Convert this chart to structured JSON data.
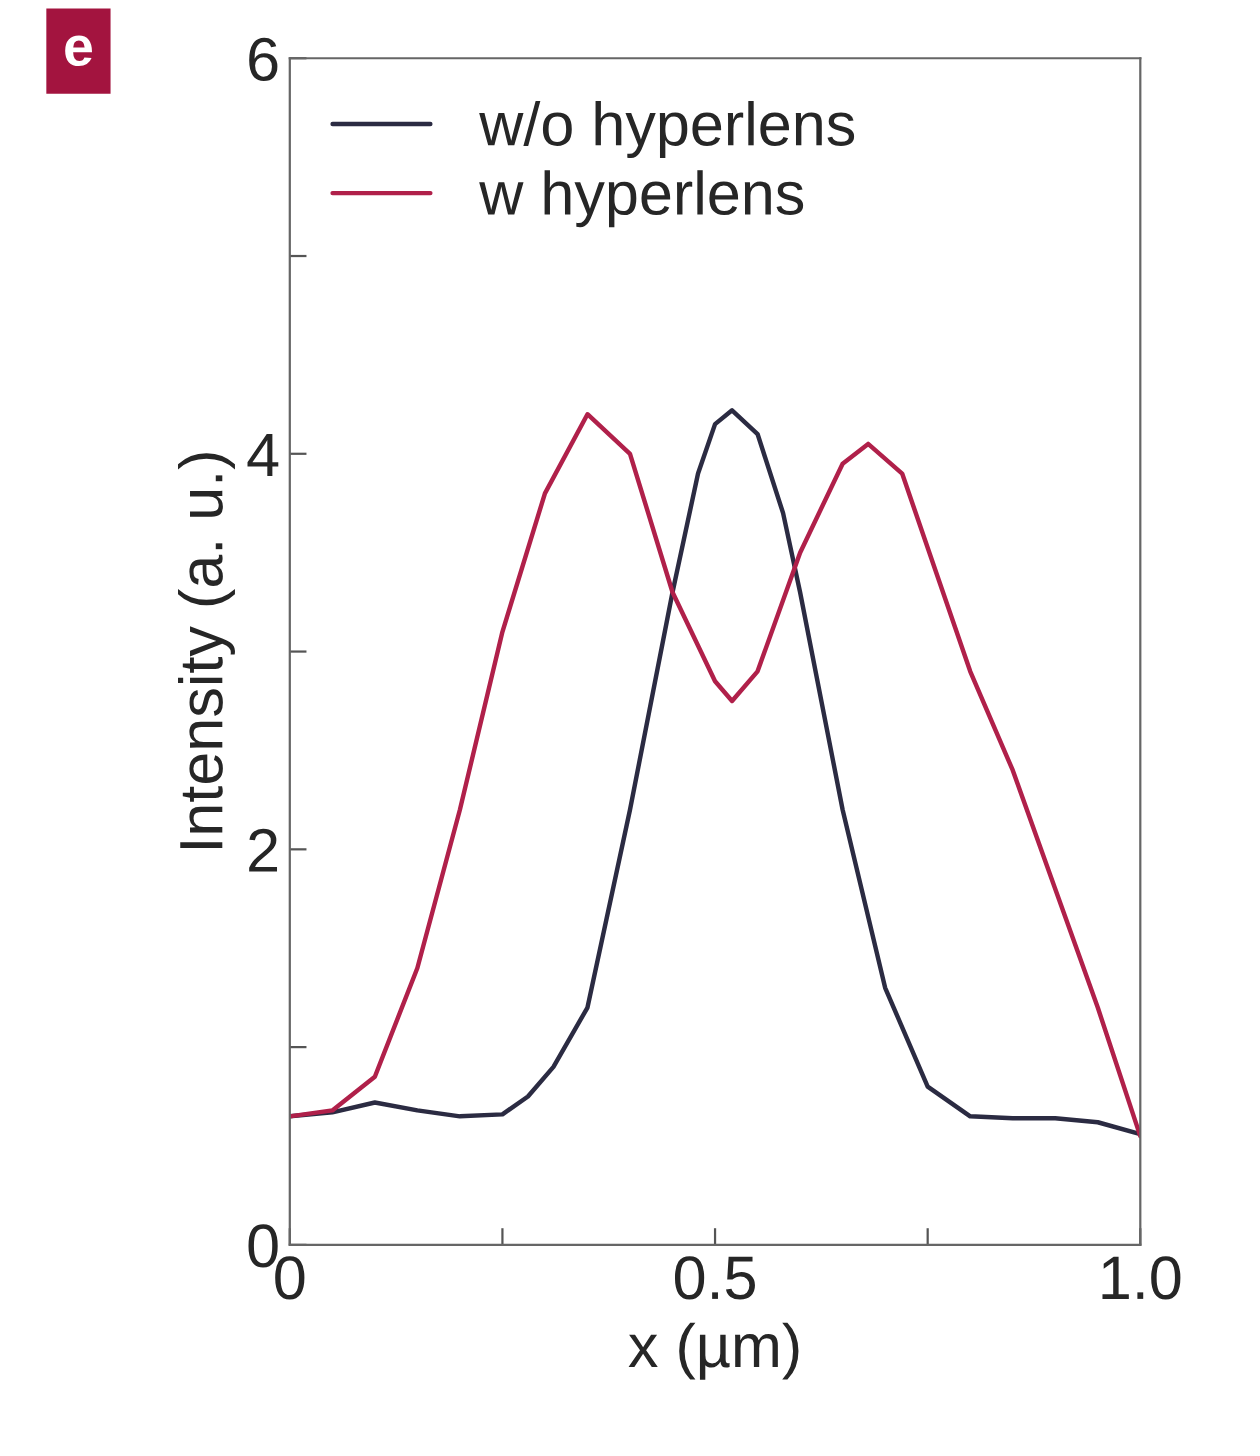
{
  "chart_data": {
    "type": "line",
    "xlabel": "x (µm)",
    "ylabel": "Intensity (a. u.)",
    "annotations": [
      "e"
    ],
    "xlim": [
      0,
      1.0
    ],
    "ylim": [
      0,
      6
    ],
    "xticks": [
      0,
      {
        "value": 0.25,
        "label": null
      },
      0.5,
      {
        "value": 0.75,
        "label": null
      },
      {
        "value": 1.0,
        "label": "1.0"
      }
    ],
    "yticks": [
      0,
      {
        "value": 1,
        "label": null
      },
      2,
      {
        "value": 3,
        "label": null
      },
      4,
      {
        "value": 5,
        "label": null
      },
      6
    ],
    "grid": false,
    "legend": "top left",
    "marker": "none",
    "line_style": "solid",
    "series": [
      {
        "name": "w/o hyperlens",
        "color": "#2b2b42",
        "x": [
          0,
          0.05,
          0.1,
          0.15,
          0.2,
          0.25,
          0.28,
          0.31,
          0.35,
          0.4,
          0.45,
          0.48,
          0.5,
          0.52,
          0.55,
          0.58,
          0.6,
          0.65,
          0.7,
          0.75,
          0.8,
          0.85,
          0.9,
          0.95,
          1.0
        ],
        "values": [
          0.65,
          0.67,
          0.72,
          0.68,
          0.65,
          0.66,
          0.75,
          0.9,
          1.2,
          2.2,
          3.3,
          3.9,
          4.15,
          4.22,
          4.1,
          3.7,
          3.3,
          2.2,
          1.3,
          0.8,
          0.65,
          0.64,
          0.64,
          0.62,
          0.56
        ]
      },
      {
        "name": "w hyperlens",
        "color": "#b0204a",
        "x": [
          0,
          0.05,
          0.1,
          0.15,
          0.2,
          0.25,
          0.3,
          0.35,
          0.4,
          0.45,
          0.5,
          0.52,
          0.55,
          0.6,
          0.65,
          0.68,
          0.72,
          0.76,
          0.8,
          0.85,
          0.9,
          0.95,
          1.0
        ],
        "values": [
          0.65,
          0.68,
          0.85,
          1.4,
          2.2,
          3.1,
          3.8,
          4.2,
          4.0,
          3.3,
          2.85,
          2.75,
          2.9,
          3.5,
          3.95,
          4.05,
          3.9,
          3.4,
          2.9,
          2.4,
          1.8,
          1.2,
          0.55
        ]
      }
    ]
  }
}
